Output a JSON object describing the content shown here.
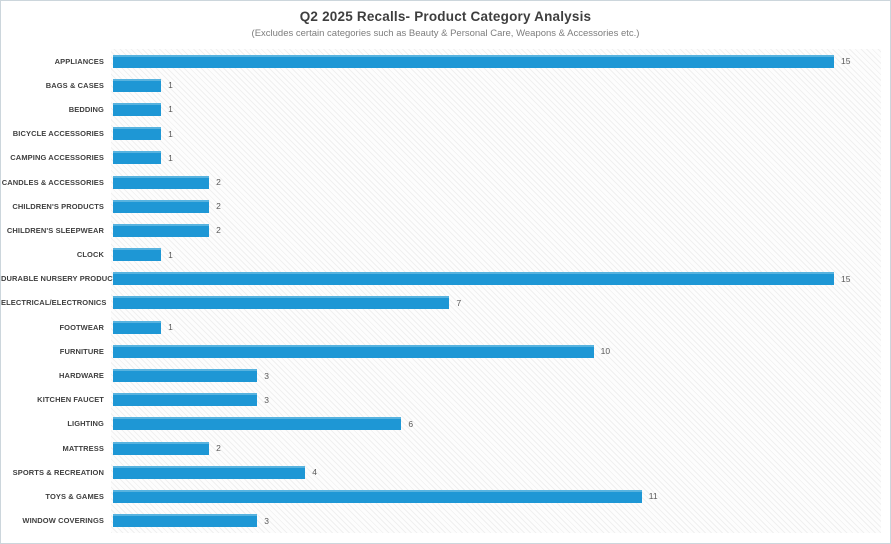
{
  "header": {
    "title": "Q2 2025 Recalls- Product Category Analysis",
    "subtitle": "(Excludes certain categories such as Beauty & Personal Care, Weapons & Accessories etc.)"
  },
  "colors": {
    "bar": "#1e97d5",
    "bar_top_highlight": "#58b3df",
    "title_text": "#3e3e3e",
    "subtitle_text": "#7d7d7d",
    "category_label": "#3f3f3f",
    "value_label": "#595959",
    "frame_border": "#ccd6dc"
  },
  "chart_data": {
    "type": "bar",
    "orientation": "horizontal",
    "title": "Q2 2025 Recalls- Product Category Analysis",
    "subtitle": "(Excludes certain categories such as Beauty & Personal Care, Weapons & Accessories etc.)",
    "categories": [
      "APPLIANCES",
      "BAGS & CASES",
      "BEDDING",
      "BICYCLE ACCESSORIES",
      "CAMPING ACCESSORIES",
      "CANDLES & ACCESSORIES",
      "CHILDREN'S PRODUCTS",
      "CHILDREN'S SLEEPWEAR",
      "CLOCK",
      "DURABLE NURSERY PRODUCT",
      "ELECTRICAL/ELECTRONICS",
      "FOOTWEAR",
      "FURNITURE",
      "HARDWARE",
      "KITCHEN FAUCET",
      "LIGHTING",
      "MATTRESS",
      "SPORTS & RECREATION",
      "TOYS & GAMES",
      "WINDOW COVERINGS"
    ],
    "values": [
      15,
      1,
      1,
      1,
      1,
      2,
      2,
      2,
      1,
      15,
      7,
      1,
      10,
      3,
      3,
      6,
      2,
      4,
      11,
      3
    ],
    "xlabel": "",
    "ylabel": "",
    "xlim": [
      0,
      15
    ],
    "grid": false,
    "legend": false,
    "value_labels": true
  }
}
